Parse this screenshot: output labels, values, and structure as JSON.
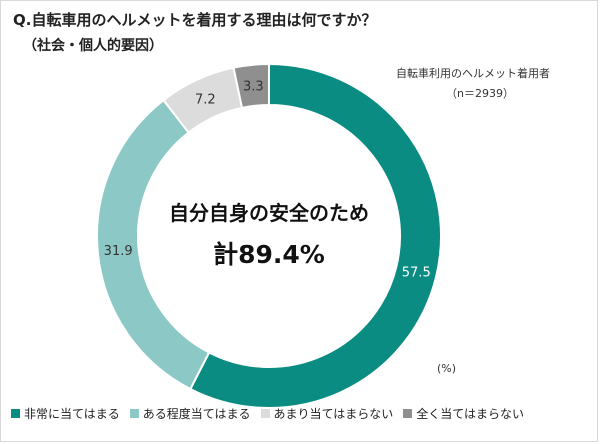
{
  "header": {
    "title": "Q.自転車用のヘルメットを着用する理由は何ですか？",
    "subtitle": "（社会・個人的要因）",
    "sample_label": "自転車利用のヘルメット着用者",
    "sample_size": "（n＝2939）"
  },
  "center": {
    "line1": "自分自身の安全のため",
    "line2": "計89.4%"
  },
  "unit_label": "(%)",
  "chart_data": {
    "type": "pie",
    "style": "donut",
    "title": "Q.自転車用のヘルメットを着用する理由は何ですか？",
    "subtitle": "（社会・個人的要因）",
    "categories": [
      "非常に当てはまる",
      "ある程度当てはまる",
      "あまり当てはまらない",
      "全く当てはまらない"
    ],
    "values": [
      57.5,
      31.9,
      7.2,
      3.3
    ],
    "value_labels": [
      "57.5",
      "31.9",
      "7.2",
      "3.3"
    ],
    "colors": [
      "#0b8c82",
      "#8cc9c6",
      "#dcdcdc",
      "#8f8f8f"
    ],
    "legend_position": "bottom",
    "unit": "%"
  }
}
